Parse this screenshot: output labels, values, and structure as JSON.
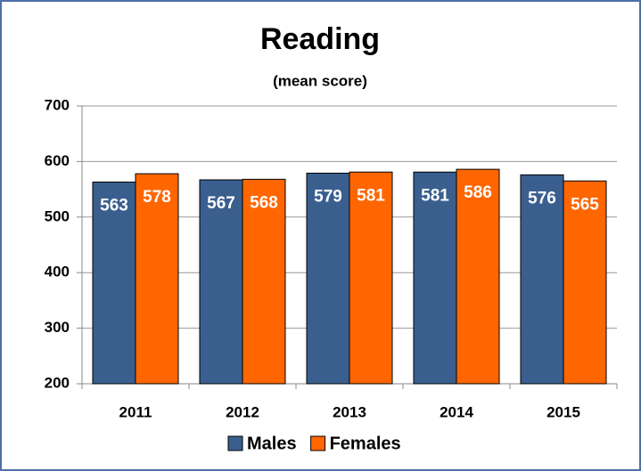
{
  "chart_data": {
    "type": "bar",
    "title": "Reading",
    "subtitle": "(mean score)",
    "categories": [
      "2011",
      "2012",
      "2013",
      "2014",
      "2015"
    ],
    "series": [
      {
        "name": "Males",
        "color": "#3a5f8f",
        "values": [
          563,
          567,
          579,
          581,
          576
        ]
      },
      {
        "name": "Females",
        "color": "#ff6600",
        "values": [
          578,
          568,
          581,
          586,
          565
        ]
      }
    ],
    "ylim": [
      200,
      700
    ],
    "yticks": [
      200,
      300,
      400,
      500,
      600,
      700
    ],
    "grid": true,
    "legend": "bottom"
  }
}
